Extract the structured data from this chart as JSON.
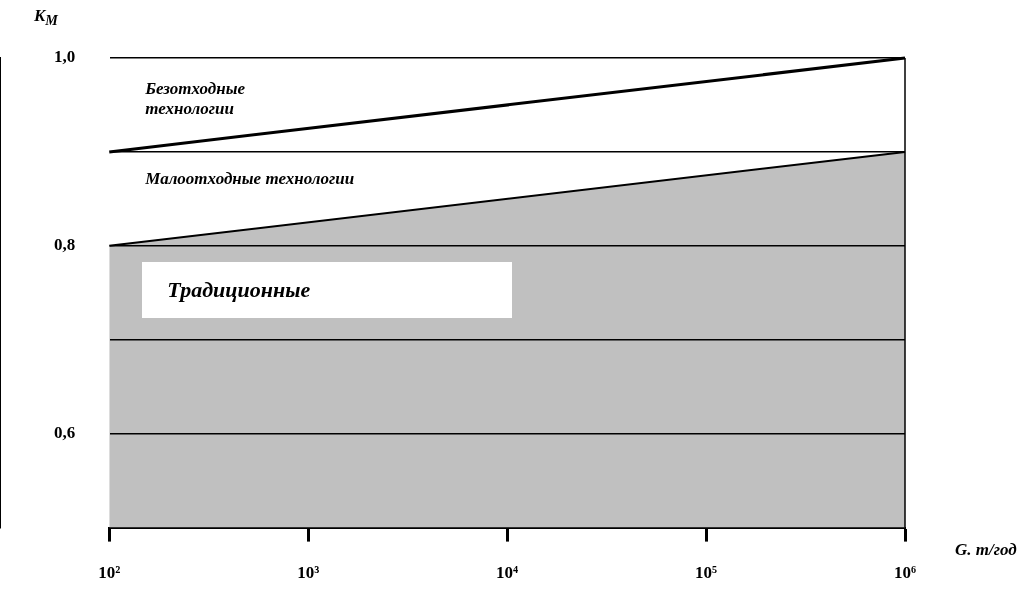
{
  "chart_data": {
    "type": "area",
    "xlabel": "G. т/год",
    "ylabel": "K$_{M}$",
    "series": [
      {
        "color": "#c0c0c0",
        "values": [
          0.8,
          0.9
        ]
      },
      {
        "type": "line",
        "color": "#000000",
        "values": [
          0.9,
          1.0
        ]
      }
    ],
    "x": [
      100,
      1000000
    ],
    "log": "x",
    "xlim": [
      100,
      1000000
    ],
    "xticks": [
      {
        "value": 100,
        "label": "10²"
      },
      {
        "value": 1000,
        "label": "10³"
      },
      {
        "value": 10000,
        "label": "10⁴"
      },
      {
        "value": 100000,
        "label": "10⁵"
      },
      {
        "value": 1000000,
        "label": "10⁶"
      }
    ],
    "ylim": [
      0.5,
      1.0
    ],
    "yticks": [
      {
        "value": 0.6,
        "label": "0,6"
      },
      {
        "value": 0.7,
        "label": null
      },
      {
        "value": 0.8,
        "label": "0,8"
      },
      {
        "value": 0.9,
        "label": null
      },
      {
        "value": 1.0,
        "label": "1,0"
      }
    ],
    "grid": "y",
    "legend": false,
    "annotations": [
      "Безотходные технологии",
      "Малоотходные технологии",
      "Традиционные"
    ]
  }
}
